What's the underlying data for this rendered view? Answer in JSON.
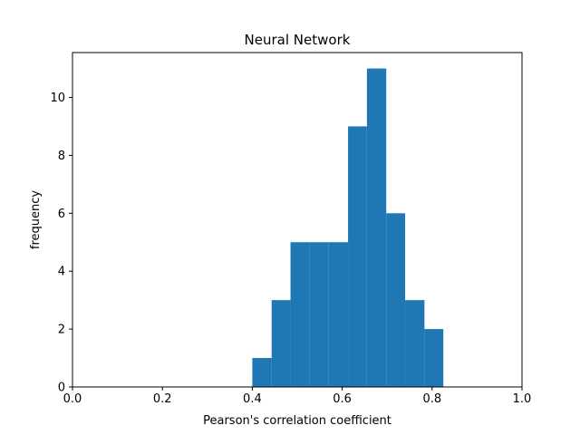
{
  "chart_data": {
    "type": "bar",
    "title": "Neural Network",
    "xlabel": "Pearson's correlation coefficient",
    "ylabel": "frequency",
    "xlim": [
      0.0,
      1.0
    ],
    "ylim": [
      0,
      11.55
    ],
    "xticks": [
      "0.0",
      "0.2",
      "0.4",
      "0.6",
      "0.8",
      "1.0"
    ],
    "yticks": [
      "0",
      "2",
      "4",
      "6",
      "8",
      "10"
    ],
    "bins": [
      {
        "x0": 0.4,
        "x1": 0.443,
        "count": 1
      },
      {
        "x0": 0.443,
        "x1": 0.485,
        "count": 3
      },
      {
        "x0": 0.485,
        "x1": 0.528,
        "count": 5
      },
      {
        "x0": 0.528,
        "x1": 0.57,
        "count": 5
      },
      {
        "x0": 0.57,
        "x1": 0.613,
        "count": 5
      },
      {
        "x0": 0.613,
        "x1": 0.655,
        "count": 9
      },
      {
        "x0": 0.655,
        "x1": 0.698,
        "count": 11
      },
      {
        "x0": 0.698,
        "x1": 0.74,
        "count": 6
      },
      {
        "x0": 0.74,
        "x1": 0.783,
        "count": 3
      },
      {
        "x0": 0.783,
        "x1": 0.825,
        "count": 2
      }
    ],
    "bar_color": "#1f77b4",
    "grid": false
  }
}
